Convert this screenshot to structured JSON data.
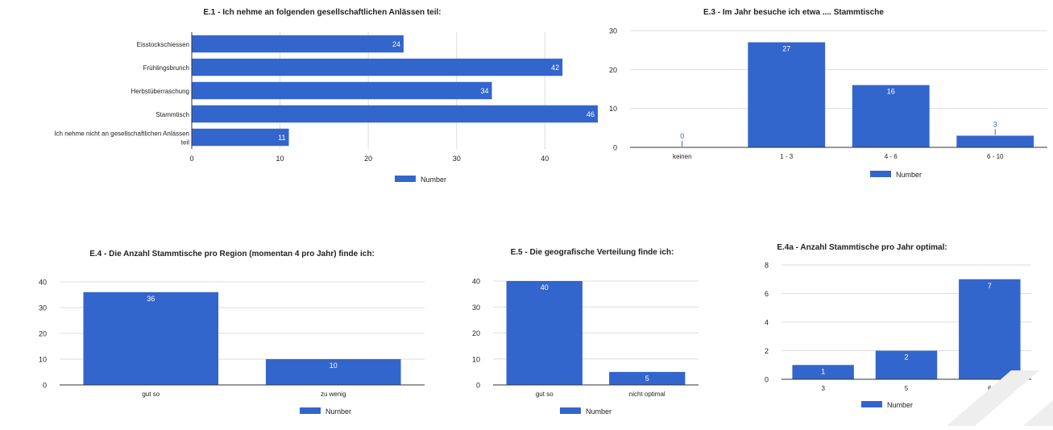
{
  "colors": {
    "bar": "#3366cc",
    "grid": "#dddddd",
    "axis": "#333333",
    "text": "#222222",
    "label_inside": "#ffffff",
    "label_outside": "#3366cc"
  },
  "legend_label": "Number",
  "chart_data": [
    {
      "id": "e1",
      "type": "bar",
      "orientation": "horizontal",
      "title": "E.1 - Ich nehme an folgenden gesellschaftlichen Anlässen teil:",
      "categories": [
        "Eisstockschiessen",
        "Frühlingsbrunch",
        "Herbstüberraschung",
        "Stammtisch",
        "Ich nehme nicht an gesellschaftlichen Anlässen teil"
      ],
      "category_lines": [
        [
          "Eisstockschiessen"
        ],
        [
          "Frühlingsbrunch"
        ],
        [
          "Herbstüberraschung"
        ],
        [
          "Stammtisch"
        ],
        [
          "Ich nehme nicht an gesellschaftlichen Anlässen",
          "teil"
        ]
      ],
      "series": [
        {
          "name": "Number",
          "values": [
            24,
            42,
            34,
            46,
            11
          ]
        }
      ],
      "xlim": [
        0,
        46
      ],
      "ticks": [
        0,
        10,
        20,
        30,
        40
      ],
      "grid": true,
      "legend": "bottom"
    },
    {
      "id": "e3",
      "type": "bar",
      "orientation": "vertical",
      "title": "E.3 - Im Jahr besuche ich etwa .... Stammtische",
      "categories": [
        "keinen",
        "1 - 3",
        "4 - 6",
        "6 - 10"
      ],
      "series": [
        {
          "name": "Number",
          "values": [
            0,
            27,
            16,
            3
          ]
        }
      ],
      "ylim": [
        0,
        30
      ],
      "ticks": [
        0,
        10,
        20,
        30
      ],
      "grid": true,
      "legend": "bottom"
    },
    {
      "id": "e4",
      "type": "bar",
      "orientation": "vertical",
      "title": "E.4 - Die Anzahl Stammtische pro Region (momentan 4 pro Jahr) finde ich:",
      "categories": [
        "gut so",
        "zu wenig"
      ],
      "series": [
        {
          "name": "Number",
          "values": [
            36,
            10
          ]
        }
      ],
      "ylim": [
        0,
        40
      ],
      "ticks": [
        0,
        10,
        20,
        30,
        40
      ],
      "grid": true,
      "legend": "bottom"
    },
    {
      "id": "e5",
      "type": "bar",
      "orientation": "vertical",
      "title": "E.5 - Die geografische Verteilung finde ich:",
      "categories": [
        "gut so",
        "nicht optimal"
      ],
      "series": [
        {
          "name": "Number",
          "values": [
            40,
            5
          ]
        }
      ],
      "ylim": [
        0,
        40
      ],
      "ticks": [
        0,
        10,
        20,
        30,
        40
      ],
      "grid": true,
      "legend": "bottom"
    },
    {
      "id": "e4a",
      "type": "bar",
      "orientation": "vertical",
      "title": "E.4a - Anzahl Stammtische pro Jahr optimal:",
      "categories": [
        "3",
        "5",
        "6"
      ],
      "series": [
        {
          "name": "Number",
          "values": [
            1,
            2,
            7
          ]
        }
      ],
      "ylim": [
        0,
        8
      ],
      "ticks": [
        0,
        2,
        4,
        6,
        8
      ],
      "grid": true,
      "legend": "bottom"
    }
  ]
}
